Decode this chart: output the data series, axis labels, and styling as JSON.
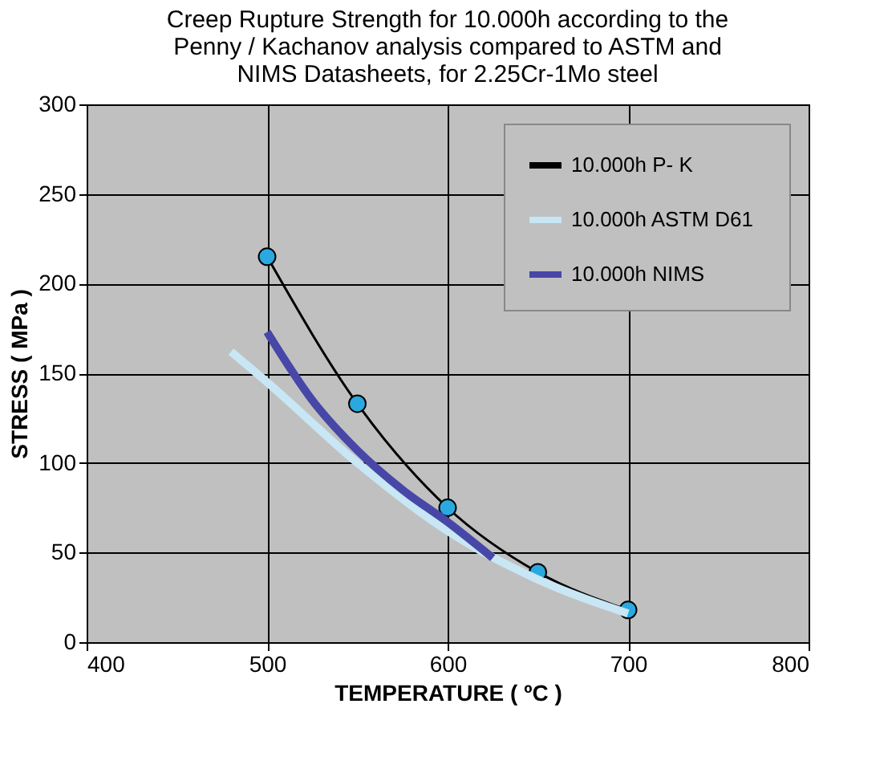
{
  "chart_data": {
    "type": "line",
    "title": [
      "Creep Rupture Strength for 10.000h   according to the",
      "Penny / Kachanov analysis compared to  ASTM and",
      "NIMS  Datasheets,  for  2.25Cr-1Mo steel"
    ],
    "xlabel": "TEMPERATURE ( ºC )",
    "ylabel": "STRESS  ( MPa )",
    "series": [
      {
        "name": "10.000h   P- K",
        "color": "#000000",
        "marker": "circle",
        "x": [
          500,
          550,
          600,
          650,
          700
        ],
        "values": [
          215,
          133,
          75,
          39,
          18
        ]
      },
      {
        "name": "10.000h   ASTM D61",
        "color": "#c8e6f4",
        "marker": "none",
        "x": [
          480,
          500,
          550,
          600,
          650,
          700
        ],
        "values": [
          162,
          145,
          100,
          62,
          35,
          16
        ]
      },
      {
        "name": "10.000h  NIMS",
        "color": "#4747a8",
        "marker": "none",
        "x": [
          500,
          525,
          550,
          575,
          600,
          625
        ],
        "values": [
          173,
          135,
          107,
          85,
          67,
          47
        ]
      }
    ],
    "xlim": [
      400,
      800
    ],
    "xticks": [
      400,
      500,
      600,
      700,
      800
    ],
    "ylim": [
      0,
      300
    ],
    "yticks": [
      0,
      50,
      100,
      150,
      200,
      250,
      300
    ],
    "grid": true,
    "legend": "top right",
    "line_style": "solid"
  }
}
